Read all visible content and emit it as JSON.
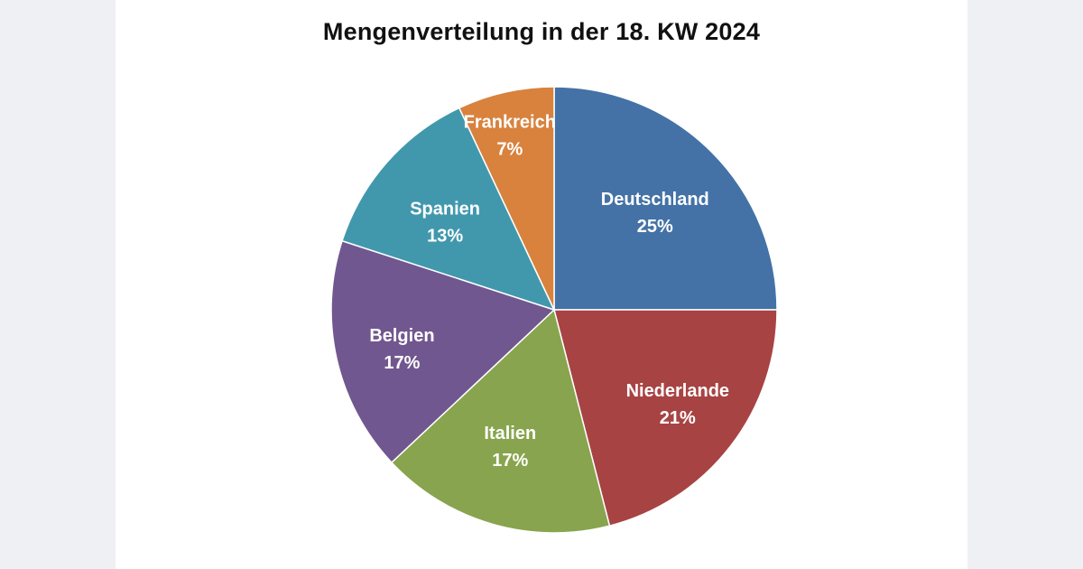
{
  "chart_data": {
    "type": "pie",
    "title": "Mengenverteilung in der 18. KW 2024",
    "start_angle_deg": 0,
    "direction": "clockwise",
    "slices": [
      {
        "label": "Deutschland",
        "value": 25,
        "value_label": "25%",
        "color": "#4472a6"
      },
      {
        "label": "Niederlande",
        "value": 21,
        "value_label": "21%",
        "color": "#a84343"
      },
      {
        "label": "Italien",
        "value": 17,
        "value_label": "17%",
        "color": "#88a44e"
      },
      {
        "label": "Belgien",
        "value": 17,
        "value_label": "17%",
        "color": "#71578f"
      },
      {
        "label": "Spanien",
        "value": 13,
        "value_label": "13%",
        "color": "#4198ad"
      },
      {
        "label": "Frankreich",
        "value": 7,
        "value_label": "7%",
        "color": "#d8823e"
      }
    ]
  }
}
